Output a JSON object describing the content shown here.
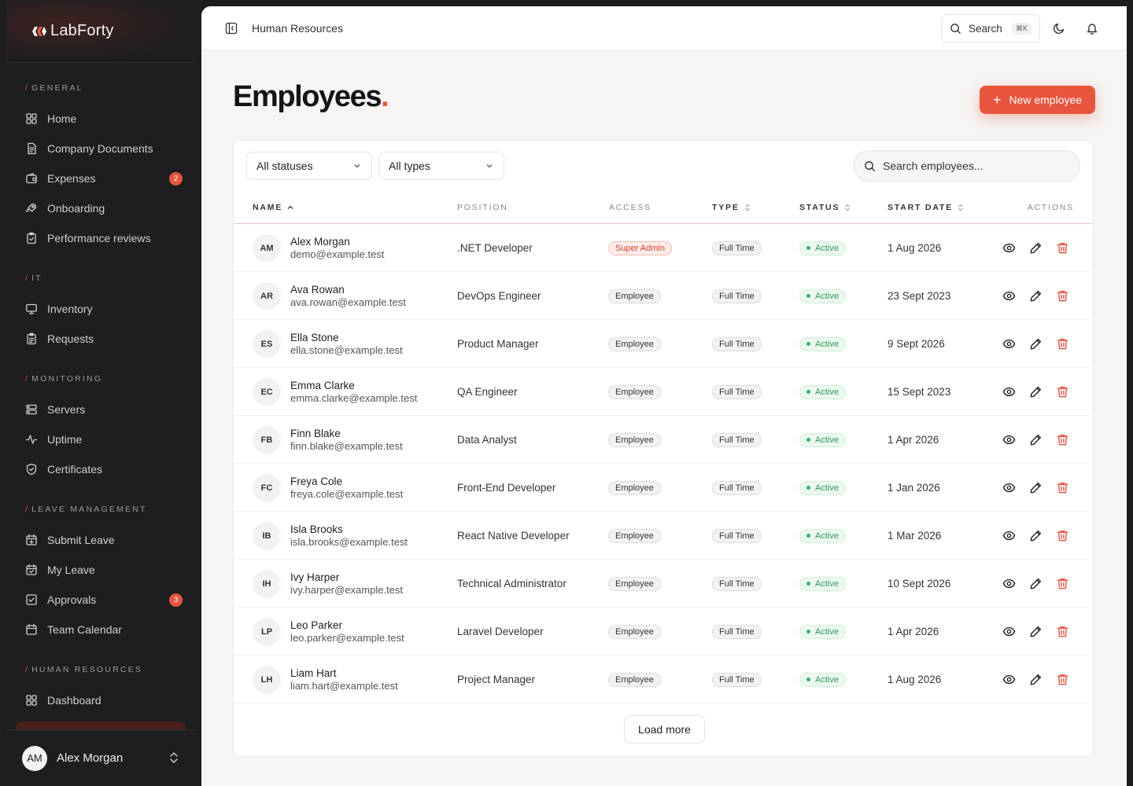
{
  "brand": {
    "name": "LabForty"
  },
  "nav": {
    "sections": [
      {
        "heading": "General",
        "items": [
          {
            "label": "Home",
            "icon": "grid-icon"
          },
          {
            "label": "Company Documents",
            "icon": "document-icon"
          },
          {
            "label": "Expenses",
            "icon": "wallet-icon",
            "badge": "2"
          },
          {
            "label": "Onboarding",
            "icon": "rocket-icon"
          },
          {
            "label": "Performance reviews",
            "icon": "clipboard-check-icon"
          }
        ]
      },
      {
        "heading": "IT",
        "items": [
          {
            "label": "Inventory",
            "icon": "monitor-icon"
          },
          {
            "label": "Requests",
            "icon": "clipboard-list-icon"
          }
        ]
      },
      {
        "heading": "Monitoring",
        "items": [
          {
            "label": "Servers",
            "icon": "server-icon"
          },
          {
            "label": "Uptime",
            "icon": "activity-icon"
          },
          {
            "label": "Certificates",
            "icon": "shield-check-icon"
          }
        ]
      },
      {
        "heading": "Leave Management",
        "items": [
          {
            "label": "Submit Leave",
            "icon": "calendar-plus-icon"
          },
          {
            "label": "My Leave",
            "icon": "calendar-icon"
          },
          {
            "label": "Approvals",
            "icon": "check-square-icon",
            "badge": "3"
          },
          {
            "label": "Team Calendar",
            "icon": "calendar-days-icon"
          }
        ]
      },
      {
        "heading": "Human Resources",
        "items": [
          {
            "label": "Dashboard",
            "icon": "grid-icon"
          }
        ]
      }
    ]
  },
  "user": {
    "initials": "AM",
    "name": "Alex Morgan"
  },
  "topbar": {
    "breadcrumb": "Human Resources",
    "search_label": "Search",
    "shortcut": "⌘K"
  },
  "page": {
    "title": "Employees",
    "title_dot": ".",
    "new_button": "New employee"
  },
  "filters": {
    "status": "All statuses",
    "type": "All types",
    "search_placeholder": "Search employees..."
  },
  "table": {
    "columns": {
      "name": "Name",
      "position": "Position",
      "access": "Access",
      "type": "Type",
      "status": "Status",
      "start_date": "Start Date",
      "actions": "Actions"
    },
    "rows": [
      {
        "initials": "AM",
        "name": "Alex Morgan",
        "email": "demo@example.test",
        "position": ".NET Developer",
        "access": "Super Admin",
        "type": "Full Time",
        "status": "Active",
        "start": "1 Aug 2026"
      },
      {
        "initials": "AR",
        "name": "Ava Rowan",
        "email": "ava.rowan@example.test",
        "position": "DevOps Engineer",
        "access": "Employee",
        "type": "Full Time",
        "status": "Active",
        "start": "23 Sept 2023"
      },
      {
        "initials": "ES",
        "name": "Ella Stone",
        "email": "ella.stone@example.test",
        "position": "Product Manager",
        "access": "Employee",
        "type": "Full Time",
        "status": "Active",
        "start": "9 Sept 2026"
      },
      {
        "initials": "EC",
        "name": "Emma Clarke",
        "email": "emma.clarke@example.test",
        "position": "QA Engineer",
        "access": "Employee",
        "type": "Full Time",
        "status": "Active",
        "start": "15 Sept 2023"
      },
      {
        "initials": "FB",
        "name": "Finn Blake",
        "email": "finn.blake@example.test",
        "position": "Data Analyst",
        "access": "Employee",
        "type": "Full Time",
        "status": "Active",
        "start": "1 Apr 2026"
      },
      {
        "initials": "FC",
        "name": "Freya Cole",
        "email": "freya.cole@example.test",
        "position": "Front-End Developer",
        "access": "Employee",
        "type": "Full Time",
        "status": "Active",
        "start": "1 Jan 2026"
      },
      {
        "initials": "IB",
        "name": "Isla Brooks",
        "email": "isla.brooks@example.test",
        "position": "React Native Developer",
        "access": "Employee",
        "type": "Full Time",
        "status": "Active",
        "start": "1 Mar 2026"
      },
      {
        "initials": "IH",
        "name": "Ivy Harper",
        "email": "ivy.harper@example.test",
        "position": "Technical Administrator",
        "access": "Employee",
        "type": "Full Time",
        "status": "Active",
        "start": "10 Sept 2026"
      },
      {
        "initials": "LP",
        "name": "Leo Parker",
        "email": "leo.parker@example.test",
        "position": "Laravel Developer",
        "access": "Employee",
        "type": "Full Time",
        "status": "Active",
        "start": "1 Apr 2026"
      },
      {
        "initials": "LH",
        "name": "Liam Hart",
        "email": "liam.hart@example.test",
        "position": "Project Manager",
        "access": "Employee",
        "type": "Full Time",
        "status": "Active",
        "start": "1 Aug 2026"
      }
    ],
    "load_more": "Load more"
  },
  "colors": {
    "accent": "#e8553e",
    "sidebar_bg": "#1e1e20",
    "active_green": "#2f9a57"
  }
}
